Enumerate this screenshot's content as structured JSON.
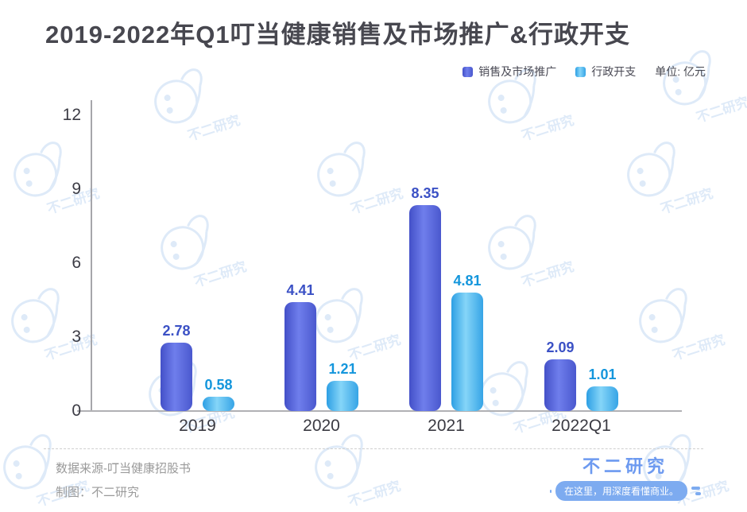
{
  "header": {
    "title": "2019-2022年Q1叮当健康销售及市场推广&行政开支"
  },
  "legend": {
    "items": [
      {
        "label": "销售及市场推广",
        "color": "#4a5ccd"
      },
      {
        "label": "行政开支",
        "color": "#45aee8"
      }
    ],
    "unit": "单位: 亿元"
  },
  "chart_data": {
    "type": "bar",
    "title": "2019-2022年Q1叮当健康销售及市场推广&行政开支",
    "categories": [
      "2019",
      "2020",
      "2021",
      "2022Q1"
    ],
    "series": [
      {
        "name": "销售及市场推广",
        "values": [
          2.78,
          4.41,
          8.35,
          2.09
        ],
        "color_gradient": [
          "#4350c8",
          "#6f7eec",
          "#4a58ce"
        ],
        "label_color": "#3b51c5"
      },
      {
        "name": "行政开支",
        "values": [
          0.58,
          1.21,
          4.81,
          1.01
        ],
        "color_gradient": [
          "#2d9fe4",
          "#85d5f8",
          "#36a4e6"
        ],
        "label_color": "#1496dc"
      }
    ],
    "unit": "亿元",
    "xlabel": "",
    "ylabel": "",
    "yticks": [
      0,
      3,
      6,
      9,
      12
    ],
    "ylim": [
      0,
      12
    ],
    "grid": false,
    "legend_position": "top-right"
  },
  "footer": {
    "source": "数据来源-叮当健康招股书",
    "credit": "制图：不二研究",
    "brand": "不二研究",
    "tagline": "在这里，用深度看懂商业。"
  },
  "watermark": {
    "text": "不二研究"
  }
}
